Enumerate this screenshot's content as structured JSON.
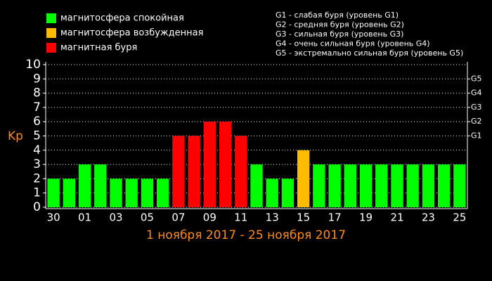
{
  "chart_data": {
    "type": "bar",
    "legend": [
      {
        "label": "магнитосфера спокойная",
        "color": "#00ff00"
      },
      {
        "label": "магнитосфера возбужденная",
        "color": "#ffbb00"
      },
      {
        "label": "магнитная буря",
        "color": "#ff0000"
      }
    ],
    "storm_levels": [
      "G1 - слабая буря (уровень G1)",
      "G2 - средняя буря (уровень G2)",
      "G3 - сильная буря (уровень G3)",
      "G4 - очень сильная буря (уровень G4)",
      "G5 - экстремально сильная буря (уровень G5)"
    ],
    "y_label": "Kp",
    "x_label": "1 ноября 2017 - 25 ноября 2017",
    "categories": [
      "30",
      null,
      "01",
      null,
      "03",
      null,
      "05",
      null,
      "07",
      null,
      "09",
      null,
      "11",
      null,
      "13",
      null,
      "15",
      null,
      "17",
      null,
      "19",
      null,
      "21",
      null,
      "23",
      null,
      "25"
    ],
    "values": [
      2,
      2,
      3,
      3,
      2,
      2,
      2,
      2,
      5,
      5,
      6,
      6,
      5,
      3,
      2,
      2,
      4,
      3,
      3,
      3,
      3,
      3,
      3,
      3,
      3,
      3,
      3
    ],
    "colors": [
      "#00ff00",
      "#00ff00",
      "#00ff00",
      "#00ff00",
      "#00ff00",
      "#00ff00",
      "#00ff00",
      "#00ff00",
      "#ff0000",
      "#ff0000",
      "#ff0000",
      "#ff0000",
      "#ff0000",
      "#00ff00",
      "#00ff00",
      "#00ff00",
      "#ffbb00",
      "#00ff00",
      "#00ff00",
      "#00ff00",
      "#00ff00",
      "#00ff00",
      "#00ff00",
      "#00ff00",
      "#00ff00",
      "#00ff00",
      "#00ff00"
    ],
    "ylim": [
      0,
      10
    ],
    "yticks": [
      0,
      1,
      2,
      3,
      4,
      5,
      6,
      7,
      8,
      9,
      10
    ],
    "y2lim": [
      0,
      10
    ],
    "y2ticks": [
      {
        "value": 5,
        "label": "G1"
      },
      {
        "value": 6,
        "label": "G2"
      },
      {
        "value": 7,
        "label": "G3"
      },
      {
        "value": 8,
        "label": "G4"
      },
      {
        "value": 9,
        "label": "G5"
      }
    ],
    "grid": true
  }
}
